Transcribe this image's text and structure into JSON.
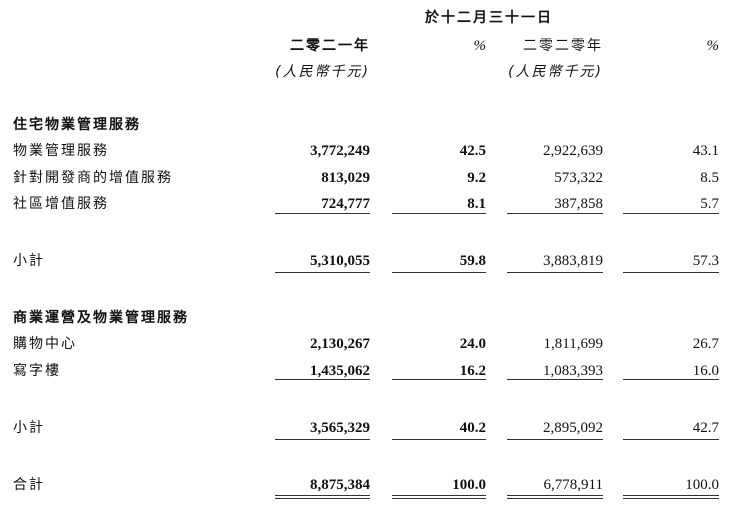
{
  "header": {
    "period": "於十二月三十一日",
    "year1": "二零二一年",
    "pct1": "%",
    "year2": "二零二零年",
    "pct2": "%",
    "unit1": "(人民幣千元)",
    "unit2": "(人民幣千元)"
  },
  "sections": [
    {
      "title": "住宅物業管理服務",
      "rows": [
        {
          "label": "物業管理服務",
          "v1": "3,772,249",
          "p1": "42.5",
          "v2": "2,922,639",
          "p2": "43.1"
        },
        {
          "label": "針對開發商的增值服務",
          "v1": "813,029",
          "p1": "9.2",
          "v2": "573,322",
          "p2": "8.5"
        },
        {
          "label": "社區增值服務",
          "v1": "724,777",
          "p1": "8.1",
          "v2": "387,858",
          "p2": "5.7"
        }
      ],
      "subtotal": {
        "label": "小計",
        "v1": "5,310,055",
        "p1": "59.8",
        "v2": "3,883,819",
        "p2": "57.3"
      }
    },
    {
      "title": "商業運營及物業管理服務",
      "rows": [
        {
          "label": "購物中心",
          "v1": "2,130,267",
          "p1": "24.0",
          "v2": "1,811,699",
          "p2": "26.7"
        },
        {
          "label": "寫字樓",
          "v1": "1,435,062",
          "p1": "16.2",
          "v2": "1,083,393",
          "p2": "16.0"
        }
      ],
      "subtotal": {
        "label": "小計",
        "v1": "3,565,329",
        "p1": "40.2",
        "v2": "2,895,092",
        "p2": "42.7"
      }
    }
  ],
  "total": {
    "label": "合計",
    "v1": "8,875,384",
    "p1": "100.0",
    "v2": "6,778,911",
    "p2": "100.0"
  }
}
